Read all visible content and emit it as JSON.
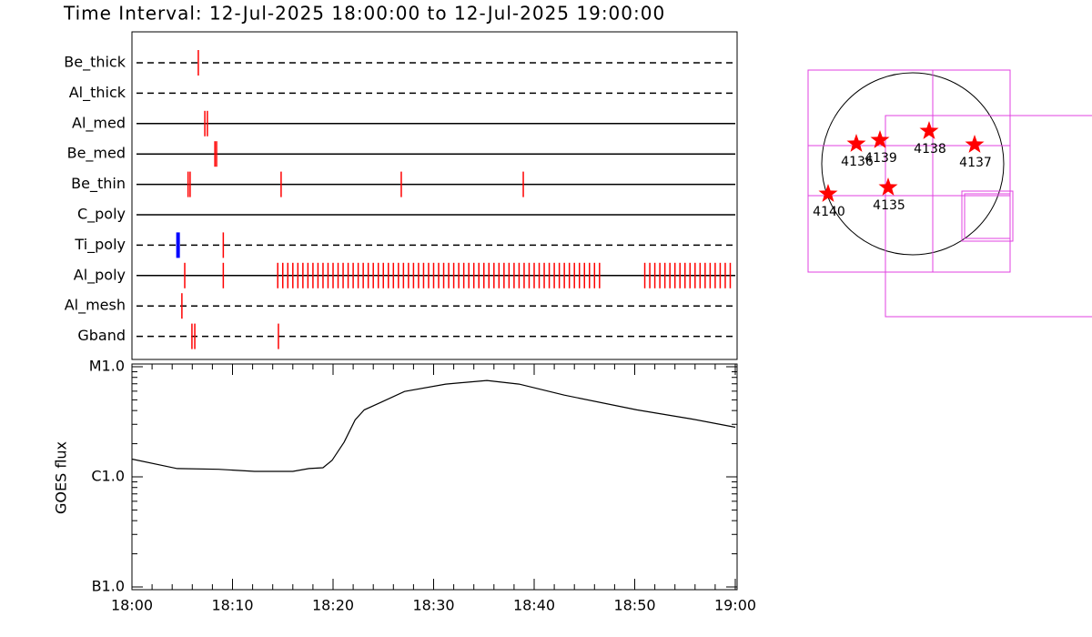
{
  "title": "Time Interval: 12-Jul-2025 18:00:00 to 12-Jul-2025 19:00:00",
  "chart_data": [
    {
      "type": "event",
      "xlim": [
        "18:00:00",
        "19:00:00"
      ],
      "rows": [
        {
          "name": "Be_thick",
          "line_style": "dashed",
          "marks": [
            {
              "color": "#ff0000",
              "times": [
                "18:06:36"
              ]
            }
          ]
        },
        {
          "name": "Al_thick",
          "line_style": "dashed",
          "marks": []
        },
        {
          "name": "Al_med",
          "line_style": "solid",
          "marks": [
            {
              "color": "#ff0000",
              "times": [
                "18:07:15",
                "18:07:30"
              ]
            }
          ]
        },
        {
          "name": "Be_med",
          "line_style": "solid",
          "marks": [
            {
              "color": "#ff0000",
              "times": [
                "18:08:15",
                "18:08:25"
              ]
            }
          ]
        },
        {
          "name": "Be_thin",
          "line_style": "solid",
          "marks": [
            {
              "color": "#ff0000",
              "times": [
                "18:05:35",
                "18:05:47",
                "18:14:50",
                "18:26:47",
                "18:38:55"
              ]
            }
          ]
        },
        {
          "name": "C_poly",
          "line_style": "solid",
          "marks": []
        },
        {
          "name": "Ti_poly",
          "line_style": "dashed",
          "marks": [
            {
              "color": "#0000ff",
              "times": [
                "18:04:35"
              ]
            },
            {
              "color": "#ff0000",
              "times": [
                "18:09:05"
              ]
            }
          ]
        },
        {
          "name": "Al_poly",
          "line_style": "solid",
          "marks": [
            {
              "color": "#ff0000",
              "times": [
                "18:05:15",
                "18:09:05",
                "18:14:30",
                "18:15:00",
                "18:15:30",
                "18:16:00",
                "18:16:30",
                "18:17:00",
                "18:17:30",
                "18:18:00",
                "18:18:30",
                "18:19:00",
                "18:19:30",
                "18:20:00",
                "18:20:30",
                "18:21:00",
                "18:21:30",
                "18:22:00",
                "18:22:30",
                "18:23:00",
                "18:23:30",
                "18:24:00",
                "18:24:30",
                "18:25:00",
                "18:25:30",
                "18:26:00",
                "18:26:30",
                "18:27:00",
                "18:27:30",
                "18:28:00",
                "18:28:30",
                "18:29:00",
                "18:29:30",
                "18:30:00",
                "18:30:30",
                "18:31:00",
                "18:31:30",
                "18:32:00",
                "18:32:30",
                "18:33:00",
                "18:33:30",
                "18:34:00",
                "18:34:30",
                "18:35:00",
                "18:35:30",
                "18:36:00",
                "18:36:30",
                "18:37:00",
                "18:37:30",
                "18:38:00",
                "18:38:30",
                "18:39:00",
                "18:39:30",
                "18:40:00",
                "18:40:30",
                "18:41:00",
                "18:41:30",
                "18:42:00",
                "18:42:30",
                "18:43:00",
                "18:43:30",
                "18:44:00",
                "18:44:30",
                "18:45:00",
                "18:45:30",
                "18:46:00",
                "18:46:30",
                "18:51:00",
                "18:51:30",
                "18:52:00",
                "18:52:30",
                "18:53:00",
                "18:53:30",
                "18:54:00",
                "18:54:30",
                "18:55:00",
                "18:55:30",
                "18:56:00",
                "18:56:30",
                "18:57:00",
                "18:57:30",
                "18:58:00",
                "18:58:30",
                "18:59:00",
                "18:59:30"
              ]
            }
          ]
        },
        {
          "name": "Al_mesh",
          "line_style": "dashed",
          "marks": [
            {
              "color": "#ff0000",
              "times": [
                "18:04:58"
              ]
            }
          ]
        },
        {
          "name": "Gband",
          "line_style": "dashed",
          "marks": [
            {
              "color": "#ff0000",
              "times": [
                "18:05:58",
                "18:06:15",
                "18:14:34"
              ]
            }
          ]
        }
      ]
    },
    {
      "type": "line",
      "ylabel": "GOES flux",
      "log_scale": true,
      "color": "#000000",
      "xlim": [
        "18:00:00",
        "19:00:00"
      ],
      "xticks": [
        "18:00",
        "18:10",
        "18:20",
        "18:30",
        "18:40",
        "18:50",
        "19:00"
      ],
      "xminorticks": [
        "18:02",
        "18:04",
        "18:06",
        "18:08",
        "18:12",
        "18:14",
        "18:16",
        "18:18",
        "18:22",
        "18:24",
        "18:26",
        "18:28",
        "18:32",
        "18:34",
        "18:36",
        "18:38",
        "18:42",
        "18:44",
        "18:46",
        "18:48",
        "18:52",
        "18:54",
        "18:56",
        "18:58"
      ],
      "ylim": [
        1e-07,
        1e-05
      ],
      "yticks": [
        {
          "value": 1e-07,
          "label": "B1.0"
        },
        {
          "value": 1e-06,
          "label": "C1.0"
        },
        {
          "value": 1e-05,
          "label": "M1.0"
        }
      ],
      "yminorticks": [
        2e-07,
        3e-07,
        4e-07,
        5e-07,
        6e-07,
        7e-07,
        8e-07,
        9e-07,
        2e-06,
        3e-06,
        4e-06,
        5e-06,
        6e-06,
        7e-06,
        8e-06,
        9e-06
      ],
      "x": [
        "18:00:00",
        "18:04:30",
        "18:08:36",
        "18:12:12",
        "18:16:00",
        "18:17:36",
        "18:19:00",
        "18:19:54",
        "18:21:06",
        "18:22:12",
        "18:23:06",
        "18:24:54",
        "18:27:06",
        "18:31:12",
        "18:35:18",
        "18:38:30",
        "18:43:00",
        "18:50:12",
        "18:55:42",
        "19:00:00"
      ],
      "values": [
        1.45e-06,
        1.19e-06,
        1.17e-06,
        1.12e-06,
        1.12e-06,
        1.19e-06,
        1.21e-06,
        1.41e-06,
        2.07e-06,
        3.29e-06,
        4.06e-06,
        4.82e-06,
        5.96e-06,
        6.95e-06,
        7.5e-06,
        6.95e-06,
        5.52e-06,
        4.06e-06,
        3.35e-06,
        2.82e-06
      ]
    },
    {
      "type": "map",
      "regions": [
        "4136",
        "4139",
        "4138",
        "4137",
        "4140",
        "4135"
      ],
      "marker_color": "#ff0000",
      "fov_color": "#e040e0"
    }
  ]
}
